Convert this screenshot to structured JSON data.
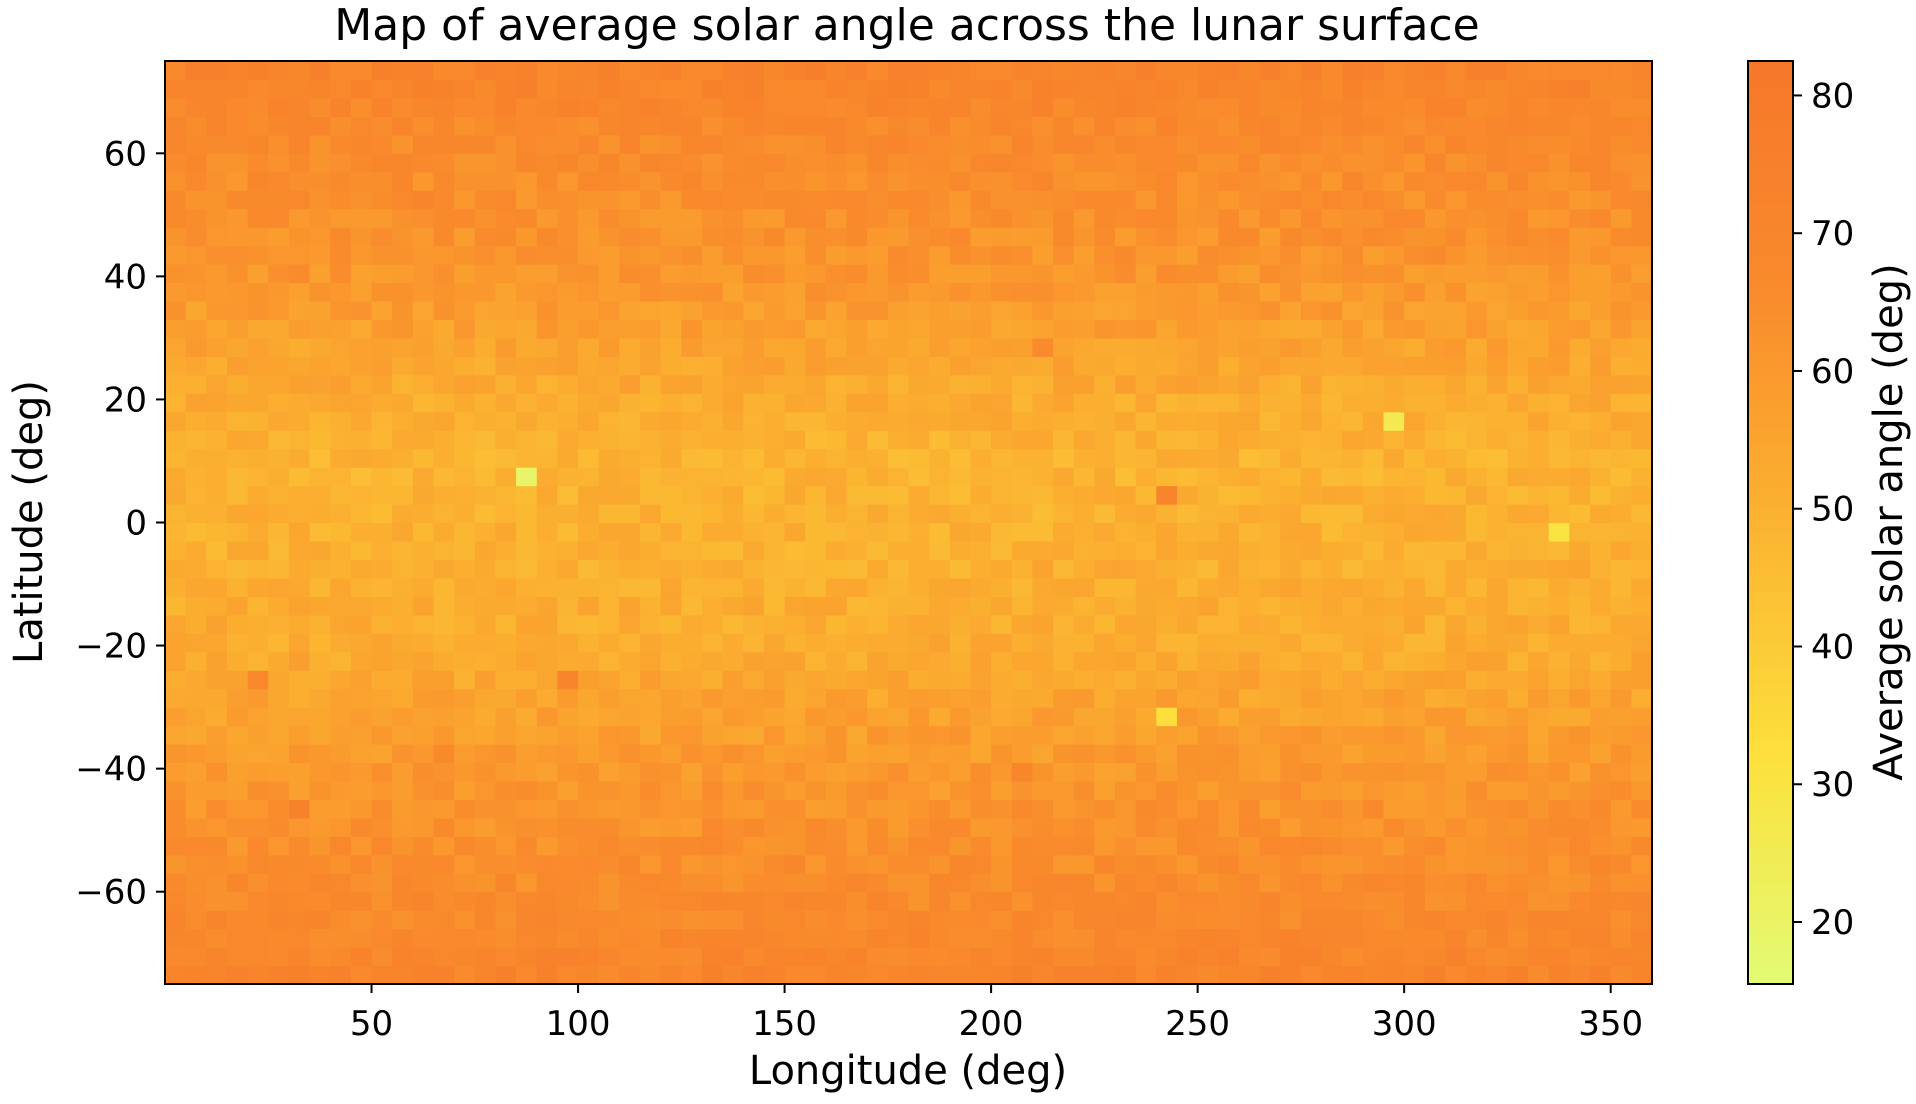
{
  "chart_data": {
    "type": "heatmap",
    "title": "Map of average solar angle across the lunar surface",
    "xlabel": "Longitude (deg)",
    "ylabel": "Latitude (deg)",
    "colorbar_label": "Average solar angle (deg)",
    "xlim": [
      0,
      360
    ],
    "ylim": [
      -75,
      75
    ],
    "clim": [
      15.5,
      82.5
    ],
    "x_ticks": [
      50,
      100,
      150,
      200,
      250,
      300,
      350
    ],
    "y_ticks": [
      -60,
      -40,
      -20,
      0,
      20,
      40,
      60
    ],
    "colorbar_ticks": [
      20,
      30,
      40,
      50,
      60,
      70,
      80
    ],
    "colormap": [
      "#e3fb74",
      "#fde03c",
      "#fbb331",
      "#f98b2c",
      "#f6772a"
    ],
    "grid": false,
    "cell_size_deg": [
      5,
      3
    ],
    "typical_values": {
      "lat_75": 72,
      "lat_60": 66,
      "lat_40": 61,
      "lat_20": 52,
      "lat_10": 49,
      "lat_0": 50,
      "lat_-20": 52,
      "lat_-40": 60,
      "lat_-60": 66,
      "lat_-75": 71
    },
    "notable_cells": [
      {
        "lon": 62.5,
        "lat": 52.5,
        "value": 72
      },
      {
        "lon": 87.5,
        "lat": 7.5,
        "value": 19
      },
      {
        "lon": 97.5,
        "lat": -25.5,
        "value": 71
      },
      {
        "lon": 32.5,
        "lat": -46.5,
        "value": 73
      },
      {
        "lon": 22.5,
        "lat": -25.5,
        "value": 68
      },
      {
        "lon": 242.5,
        "lat": 4.5,
        "value": 72
      },
      {
        "lon": 242.5,
        "lat": -31.5,
        "value": 33
      },
      {
        "lon": 207.5,
        "lat": -40.5,
        "value": 70
      },
      {
        "lon": 212.5,
        "lat": 28.5,
        "value": 66
      },
      {
        "lon": 297.5,
        "lat": 16.5,
        "value": 26
      },
      {
        "lon": 337.5,
        "lat": -1.5,
        "value": 30
      },
      {
        "lon": 67.5,
        "lat": -37.5,
        "value": 67
      }
    ]
  }
}
